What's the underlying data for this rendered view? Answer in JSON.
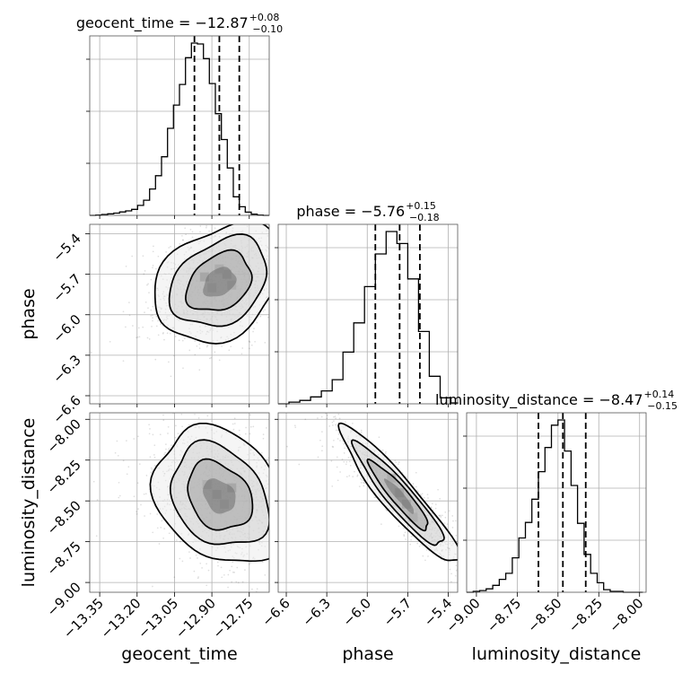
{
  "chart_data": {
    "type": "corner",
    "parameters": [
      "geocent_time",
      "phase",
      "luminosity_distance"
    ],
    "axis_labels": {
      "x": [
        "geocent_time",
        "phase",
        "luminosity_distance"
      ],
      "y_row1": "phase",
      "y_row2": "luminosity_distance"
    },
    "axis_ranges": {
      "geocent_time": [
        -13.39,
        -12.67
      ],
      "phase": [
        -6.66,
        -5.33
      ],
      "luminosity_distance": [
        -9.06,
        -7.96
      ]
    },
    "ticks": {
      "geocent_time": {
        "values": [
          -13.35,
          -13.2,
          -13.05,
          -12.9,
          -12.75
        ],
        "labels": [
          "−13.35",
          "−13.20",
          "−13.05",
          "−12.90",
          "−12.75"
        ]
      },
      "phase": {
        "values": [
          -6.6,
          -6.3,
          -6.0,
          -5.7,
          -5.4
        ],
        "labels": [
          "−6.6",
          "−6.3",
          "−6.0",
          "−5.7",
          "−5.4"
        ]
      },
      "luminosity_distance": {
        "values": [
          -9.0,
          -8.75,
          -8.5,
          -8.25,
          -8.0
        ],
        "labels": [
          "−9.00",
          "−8.75",
          "−8.50",
          "−8.25",
          "−8.00"
        ]
      }
    },
    "titles": [
      {
        "param": "geocent_time",
        "base": "geocent_time = −12.87",
        "plus": "+0.08",
        "minus": "−0.10"
      },
      {
        "param": "phase",
        "base": "phase = −5.76",
        "plus": "+0.15",
        "minus": "−0.18"
      },
      {
        "param": "luminosity_distance",
        "base": "luminosity_distance = −8.47",
        "plus": "+0.14",
        "minus": "−0.15"
      }
    ],
    "histograms": {
      "geocent_time": {
        "edges": [
          -13.39,
          -13.366,
          -13.342,
          -13.318,
          -13.294,
          -13.27,
          -13.246,
          -13.222,
          -13.198,
          -13.174,
          -13.15,
          -13.126,
          -13.102,
          -13.078,
          -13.054,
          -13.03,
          -13.006,
          -12.982,
          -12.958,
          -12.934,
          -12.91,
          -12.886,
          -12.862,
          -12.838,
          -12.814,
          -12.79,
          -12.766,
          -12.742,
          -12.718,
          -12.694,
          -12.67
        ],
        "counts": [
          0.0,
          0.2,
          0.5,
          0.9,
          1.3,
          2.0,
          2.6,
          3.5,
          5.8,
          8.8,
          15.3,
          23.0,
          34.0,
          50.5,
          64.0,
          76.0,
          91.5,
          100.0,
          99.5,
          91.0,
          76.5,
          59.0,
          44.0,
          27.5,
          10.8,
          5.0,
          1.9,
          0.7,
          0.2,
          0.0
        ]
      },
      "phase": {
        "edges": [
          -6.66,
          -6.58,
          -6.5,
          -6.42,
          -6.34,
          -6.26,
          -6.18,
          -6.1,
          -6.02,
          -5.94,
          -5.86,
          -5.78,
          -5.7,
          -5.62,
          -5.54,
          -5.46,
          -5.38,
          -5.33
        ],
        "counts": [
          0.0,
          1.0,
          2.0,
          4.0,
          7.5,
          14.0,
          30.0,
          47.0,
          68.0,
          87.0,
          100.0,
          93.0,
          72.5,
          42.0,
          16.0,
          3.5,
          0.5
        ]
      },
      "luminosity_distance": {
        "edges": [
          -9.06,
          -9.02,
          -8.98,
          -8.94,
          -8.9,
          -8.86,
          -8.82,
          -8.78,
          -8.74,
          -8.7,
          -8.66,
          -8.62,
          -8.58,
          -8.54,
          -8.5,
          -8.46,
          -8.42,
          -8.38,
          -8.34,
          -8.3,
          -8.26,
          -8.22,
          -8.18,
          -8.14,
          -8.1,
          -8.06,
          -8.02,
          -7.98
        ],
        "counts": [
          0.0,
          0.5,
          1.0,
          2.0,
          4.0,
          7.5,
          11.0,
          20.0,
          31.5,
          40.5,
          54.0,
          70.0,
          84.0,
          97.0,
          100.0,
          82.0,
          62.0,
          40.0,
          22.0,
          11.0,
          5.5,
          1.5,
          0.5,
          0.5,
          0.0,
          0.0,
          0.0
        ]
      }
    },
    "quantiles": {
      "geocent_time": [
        -12.97,
        -12.87,
        -12.79
      ],
      "phase": [
        -5.94,
        -5.76,
        -5.61
      ],
      "luminosity_distance": [
        -8.62,
        -8.47,
        -8.33
      ]
    },
    "scatter_2d": [
      {
        "x": "geocent_time",
        "y": "phase",
        "center": [
          -12.87,
          -5.76
        ],
        "sd": [
          0.13,
          0.22
        ],
        "rho": 0.3
      },
      {
        "x": "geocent_time",
        "y": "luminosity_distance",
        "center": [
          -12.87,
          -8.47
        ],
        "sd": [
          0.13,
          0.21
        ],
        "rho": -0.25
      },
      {
        "x": "phase",
        "y": "luminosity_distance",
        "center": [
          -5.76,
          -8.47
        ],
        "sd": [
          0.22,
          0.21
        ],
        "rho": -0.93
      }
    ],
    "density_cells": [
      {
        "panel": "time-phase",
        "x": -12.93,
        "y": -5.72,
        "shade": "#0a0a0a"
      },
      {
        "panel": "time-phase",
        "x": -12.84,
        "y": -5.7,
        "shade": "#1a1a1a"
      },
      {
        "panel": "time-phase",
        "x": -12.87,
        "y": -5.66,
        "shade": "#4a4a4a"
      },
      {
        "panel": "time-phase",
        "x": -12.9,
        "y": -5.8,
        "shade": "#555555"
      },
      {
        "panel": "time-phase",
        "x": -12.82,
        "y": -5.78,
        "shade": "#666666"
      },
      {
        "panel": "time-dist",
        "x": -12.82,
        "y": -8.42,
        "shade": "#151515"
      },
      {
        "panel": "time-dist",
        "x": -12.88,
        "y": -8.46,
        "shade": "#3d3d3d"
      },
      {
        "panel": "time-dist",
        "x": -12.85,
        "y": -8.52,
        "shade": "#555555"
      },
      {
        "panel": "time-dist",
        "x": -12.92,
        "y": -8.4,
        "shade": "#6a6a6a"
      },
      {
        "panel": "phase-dist",
        "x": -5.82,
        "y": -8.36,
        "shade": "#3a3a3a"
      },
      {
        "panel": "phase-dist",
        "x": -5.76,
        "y": -8.45,
        "shade": "#0a0a0a"
      },
      {
        "panel": "phase-dist",
        "x": -5.71,
        "y": -8.52,
        "shade": "#0a0a0a"
      },
      {
        "panel": "phase-dist",
        "x": -5.66,
        "y": -8.6,
        "shade": "#555555"
      }
    ],
    "contour_levels": [
      0.5,
      1.0,
      1.5,
      2.0
    ],
    "grid": true
  }
}
